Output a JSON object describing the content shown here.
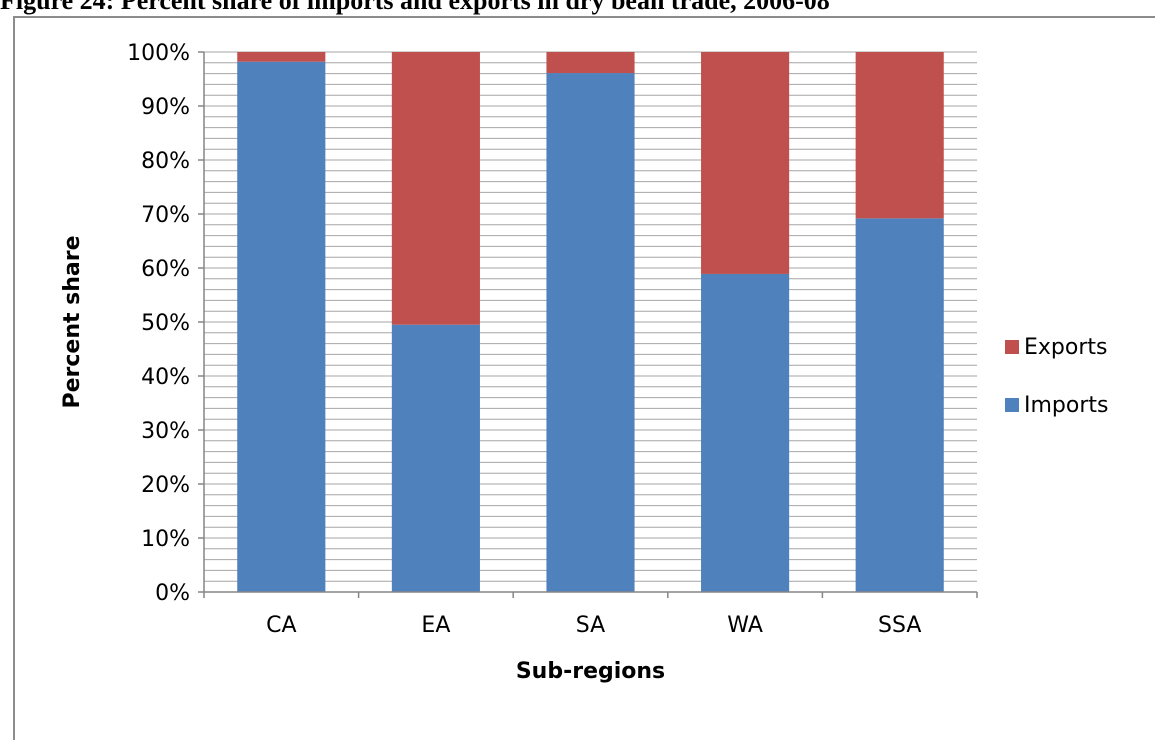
{
  "figure": {
    "title": "Figure 24: Percent share of imports and exports in dry bean trade, 2006-08"
  },
  "chart_data": {
    "type": "bar",
    "stacked": true,
    "categories": [
      "CA",
      "EA",
      "SA",
      "WA",
      "SSA"
    ],
    "series": [
      {
        "name": "Imports",
        "values": [
          98.2,
          49.5,
          96.1,
          58.9,
          69.2
        ],
        "color": "#4f81bd"
      },
      {
        "name": "Exports",
        "values": [
          1.8,
          50.5,
          3.9,
          41.1,
          30.8
        ],
        "color": "#c0504d"
      }
    ],
    "xlabel": "Sub-regions",
    "ylabel": "Percent share",
    "ylim": [
      0,
      100
    ],
    "yticks": [
      "0%",
      "10%",
      "20%",
      "30%",
      "40%",
      "50%",
      "60%",
      "70%",
      "80%",
      "90%",
      "100%"
    ],
    "grid": true,
    "legend_position": "right",
    "legend_order": [
      "Exports",
      "Imports"
    ]
  }
}
